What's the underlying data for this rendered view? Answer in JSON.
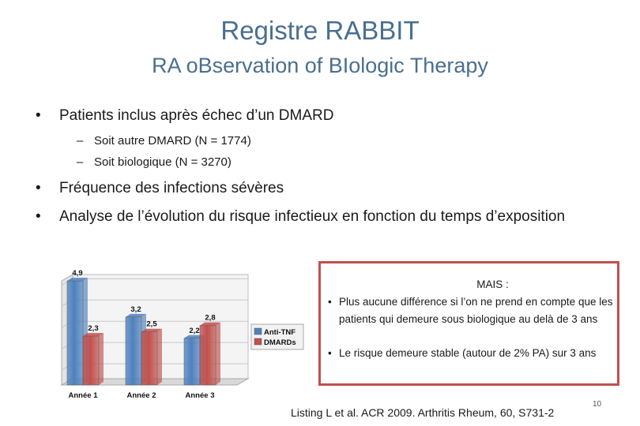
{
  "title": "Registre RABBIT",
  "subtitle": "RA oBservation of BIologic Therapy",
  "bullets": [
    "Patients inclus après échec d’un DMARD",
    "Fréquence des infections sévères",
    "Analyse de l’évolution du risque infectieux en fonction du temps d’exposition"
  ],
  "subbullets": [
    "Soit autre DMARD (N = 1774)",
    "Soit biologique (N = 3270)"
  ],
  "bullet_symbol": "•",
  "dash_symbol": "–",
  "box": {
    "title": "MAIS :",
    "items": [
      "Plus aucune différence si l’on ne prend en compte que les patients qui demeure sous biologique au delà de 3 ans",
      "Le risque demeure stable (autour de 2% PA) sur 3 ans"
    ]
  },
  "reference": "Listing L et al. ACR 2009. Arthritis Rheum, 60, S731-2",
  "page_number": "10",
  "chart_data": {
    "type": "bar",
    "categories": [
      "Année 1",
      "Année 2",
      "Année 3"
    ],
    "series": [
      {
        "name": "Anti-TNF",
        "values": [
          4.9,
          3.2,
          2.2
        ],
        "labels": [
          "4,9",
          "3,2",
          "2,2"
        ],
        "color": "#4f81bd"
      },
      {
        "name": "DMARDs",
        "values": [
          2.3,
          2.5,
          2.8
        ],
        "labels": [
          "2,3",
          "2,5",
          "2,8"
        ],
        "color": "#c0504d"
      }
    ],
    "ylim": [
      0,
      5.2
    ],
    "grid": true,
    "legend": "right"
  }
}
